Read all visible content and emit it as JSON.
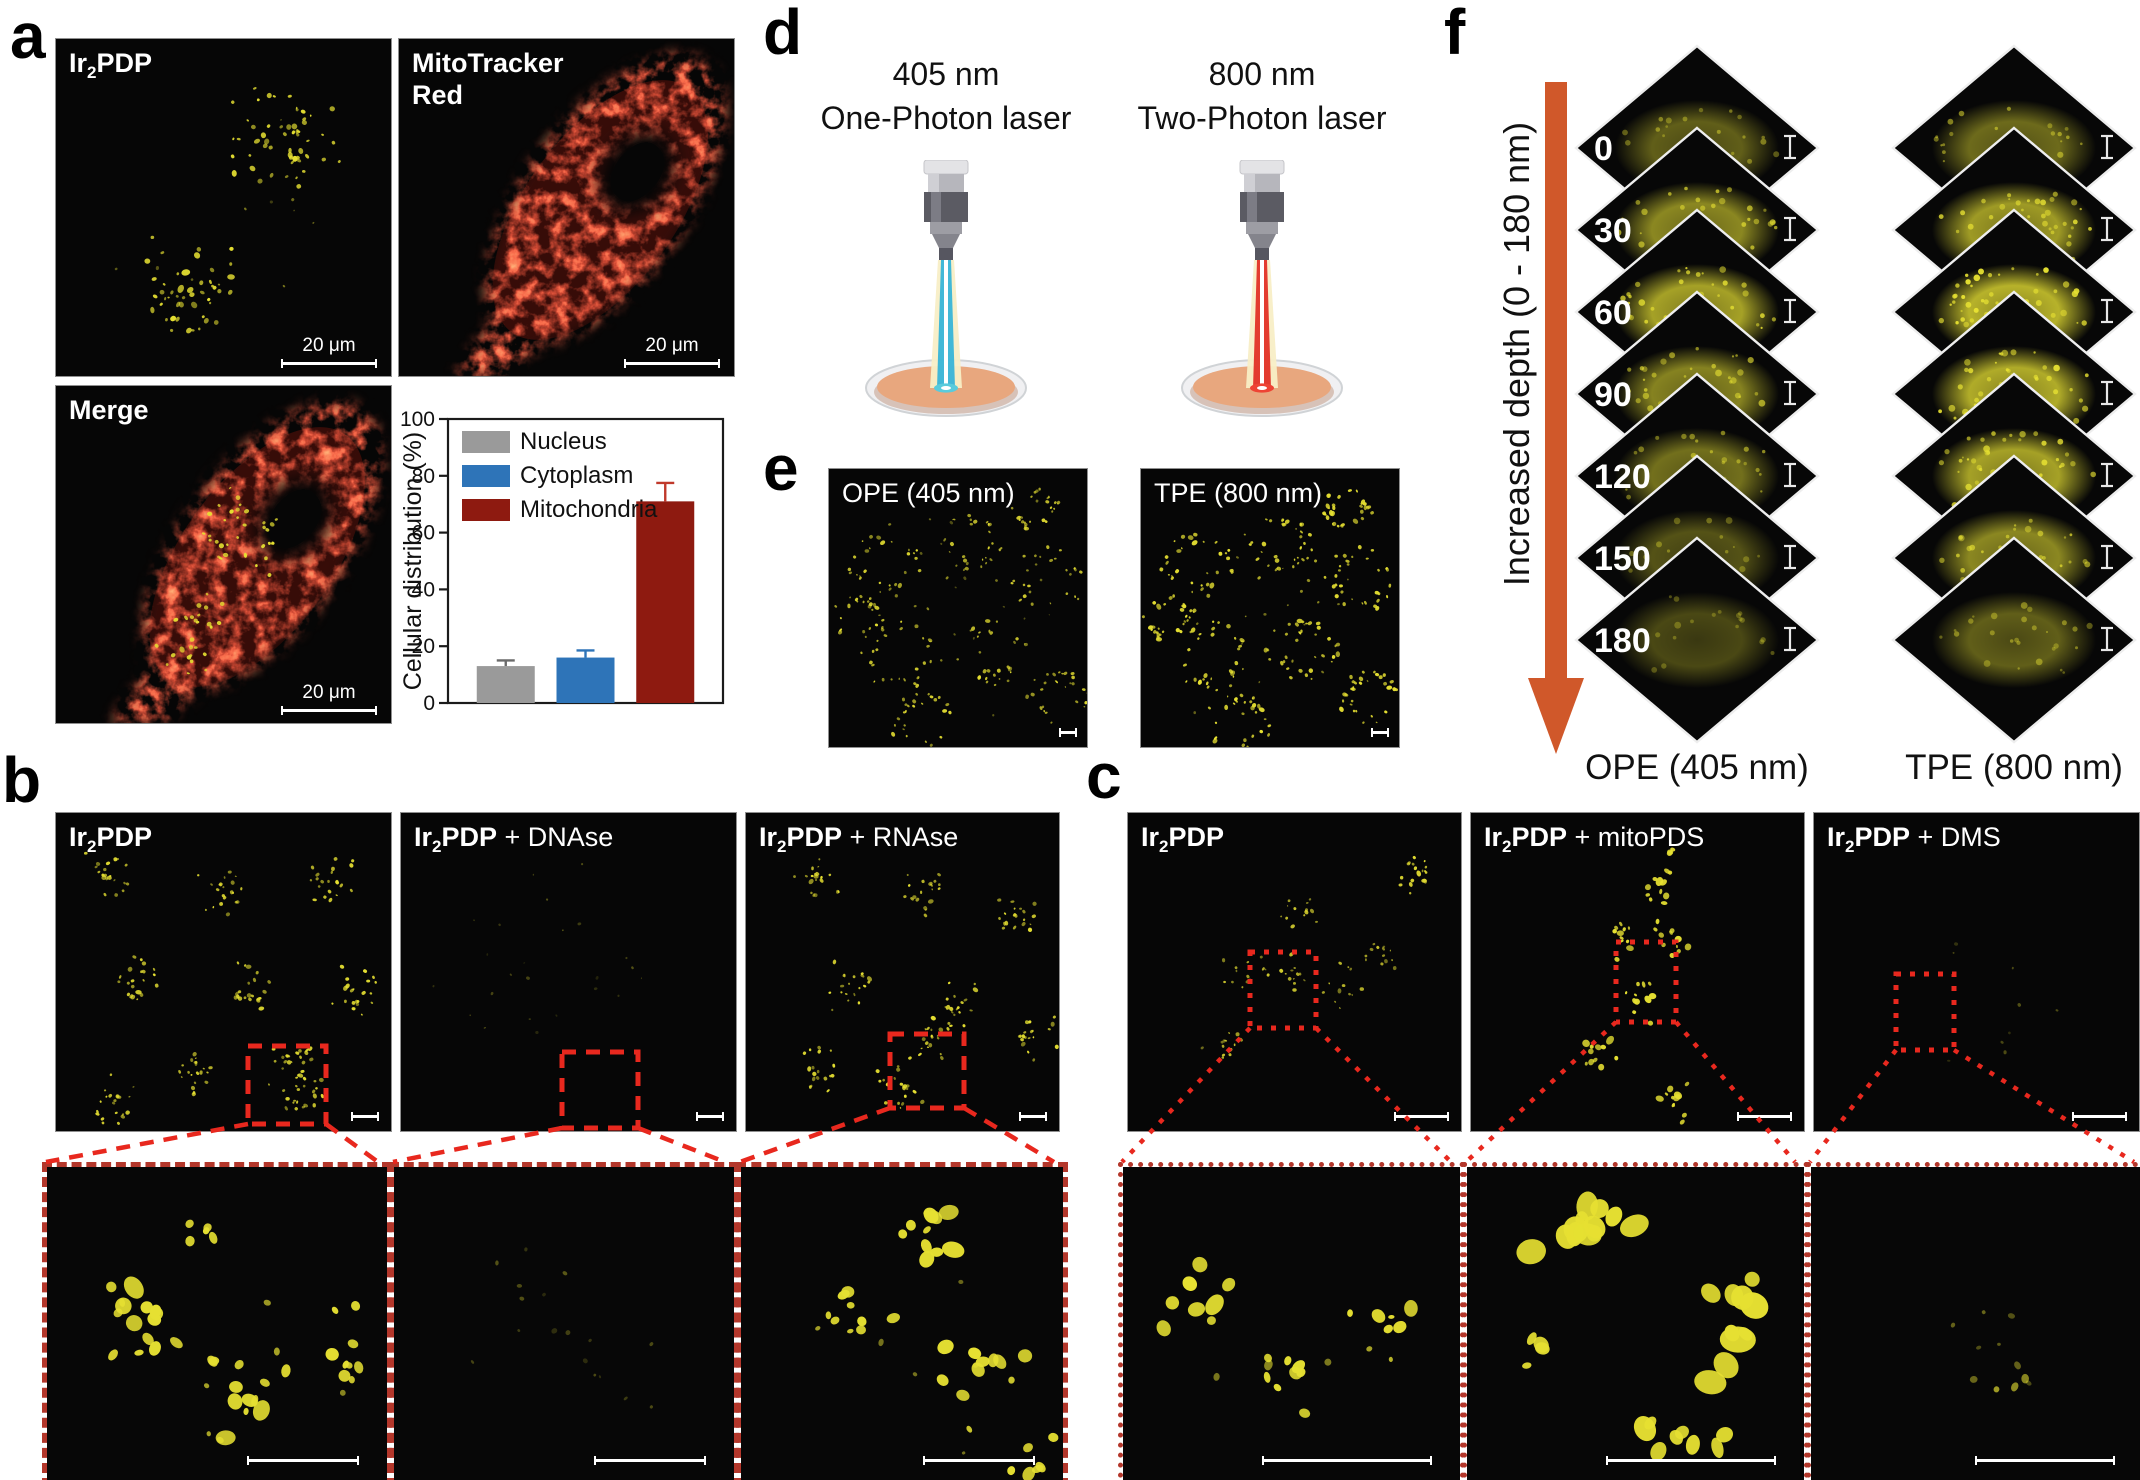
{
  "colors": {
    "background": "#ffffff",
    "speckle_yellow": "#e6e032",
    "mito_red": "#e32017",
    "marker_red": "#e8281e",
    "inset_border_red": "#b3372b",
    "depth_arrow_orange": "#d0582a"
  },
  "chart_data": {
    "type": "bar",
    "categories": [
      "Nucleus",
      "Cytoplasm",
      "Mitochondria"
    ],
    "values": [
      13,
      16,
      71
    ],
    "errors": [
      2,
      2.5,
      6.5
    ],
    "colors": [
      "#9a9a9a",
      "#2e74b8",
      "#8e1a10"
    ],
    "title": "",
    "xlabel": "",
    "ylabel": "Cellular distribution (%)",
    "ylim": [
      0,
      100
    ],
    "yticks": [
      0,
      20,
      40,
      60,
      80,
      100
    ],
    "legend_position": "top-left",
    "grid": false
  },
  "panels": {
    "a": {
      "label": "a",
      "scale_bar_label": "20 μm",
      "images": {
        "ir2pdp": {
          "pre": "Ir",
          "sub": "2",
          "rest": "PDP"
        },
        "mitotracker": {
          "line1": "MitoTracker",
          "line2": "Red"
        },
        "merge": {
          "title": "Merge"
        }
      }
    },
    "b": {
      "label": "b",
      "columns": [
        {
          "pre": "Ir",
          "sub": "2",
          "rest": "PDP",
          "suffix": ""
        },
        {
          "pre": "Ir",
          "sub": "2",
          "rest": "PDP",
          "suffix": " + DNAse"
        },
        {
          "pre": "Ir",
          "sub": "2",
          "rest": "PDP",
          "suffix": " + RNAse"
        }
      ]
    },
    "c": {
      "label": "c",
      "columns": [
        {
          "pre": "Ir",
          "sub": "2",
          "rest": "PDP",
          "suffix": ""
        },
        {
          "pre": "Ir",
          "sub": "2",
          "rest": "PDP",
          "suffix": " + mitoPDS"
        },
        {
          "pre": "Ir",
          "sub": "2",
          "rest": "PDP",
          "suffix": " + DMS"
        }
      ]
    },
    "d": {
      "label": "d",
      "left": {
        "wavelength": "405 nm",
        "laser": "One-Photon laser",
        "beam_color": "#38b4d8",
        "spot_color": "#59cbdc"
      },
      "right": {
        "wavelength": "800 nm",
        "laser": "Two-Photon laser",
        "beam_color": "#e23127",
        "spot_color": "#ee4434"
      }
    },
    "e": {
      "label": "e",
      "images": [
        {
          "title": "OPE (405 nm)"
        },
        {
          "title": "TPE (800 nm)"
        }
      ]
    },
    "f": {
      "label": "f",
      "depth_axis_label": "Increased depth (0 - 180 nm)",
      "depths": [
        "0",
        "30",
        "60",
        "90",
        "120",
        "150",
        "180"
      ],
      "stacks": [
        {
          "title": "OPE (405 nm)",
          "relative_intensity": [
            0.3,
            0.65,
            0.85,
            0.6,
            0.45,
            0.2,
            0.12
          ]
        },
        {
          "title": "TPE (800 nm)",
          "relative_intensity": [
            0.4,
            0.8,
            1.0,
            0.95,
            0.85,
            0.65,
            0.3
          ]
        }
      ]
    }
  }
}
